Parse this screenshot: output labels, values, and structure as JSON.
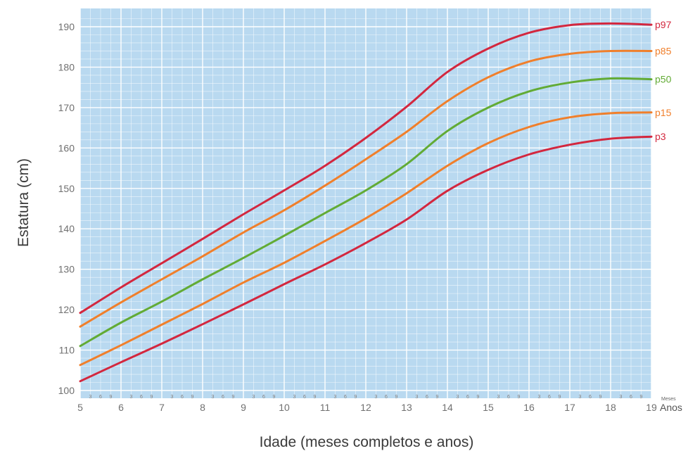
{
  "chart_data": {
    "type": "line",
    "title": "",
    "xlabel": "Idade (meses completos e anos)",
    "ylabel": "Estatura (cm)",
    "x_unit_label": "Anos",
    "month_unit_label": "Meses",
    "xlim": [
      5,
      19
    ],
    "ylim": [
      100,
      193
    ],
    "x_ticks": [
      5,
      6,
      7,
      8,
      9,
      10,
      11,
      12,
      13,
      14,
      15,
      16,
      17,
      18,
      19
    ],
    "y_ticks": [
      100,
      110,
      120,
      130,
      140,
      150,
      160,
      170,
      180,
      190
    ],
    "month_ticks": [
      "3",
      "6",
      "9"
    ],
    "grid": true,
    "background_color": "#b9d9f0",
    "grid_color": "#ffffff",
    "legend": "inline-right",
    "x": [
      5,
      6,
      7,
      8,
      9,
      10,
      11,
      12,
      13,
      14,
      15,
      16,
      17,
      18,
      19
    ],
    "series": [
      {
        "name": "p97",
        "color": "#d3273e",
        "values": [
          119.2,
          125.5,
          131.5,
          137.5,
          143.6,
          149.5,
          155.6,
          162.5,
          170.2,
          178.8,
          184.6,
          188.5,
          190.4,
          190.8,
          190.5
        ]
      },
      {
        "name": "p85",
        "color": "#f07f2b",
        "values": [
          115.8,
          121.8,
          127.5,
          133.2,
          139.1,
          144.6,
          150.7,
          157.2,
          164.0,
          171.6,
          177.5,
          181.4,
          183.3,
          184.0,
          184.0
        ]
      },
      {
        "name": "p50",
        "color": "#62ab35",
        "values": [
          111.0,
          116.8,
          122.0,
          127.5,
          132.8,
          138.3,
          143.9,
          149.5,
          156.0,
          164.2,
          170.0,
          174.0,
          176.2,
          177.2,
          177.0
        ]
      },
      {
        "name": "p15",
        "color": "#f07f2b",
        "values": [
          106.3,
          111.2,
          116.3,
          121.4,
          126.7,
          131.6,
          137.0,
          142.6,
          148.8,
          155.6,
          161.2,
          165.2,
          167.6,
          168.6,
          168.8
        ]
      },
      {
        "name": "p3",
        "color": "#d3273e",
        "values": [
          102.3,
          107.0,
          111.6,
          116.4,
          121.3,
          126.3,
          131.2,
          136.5,
          142.3,
          149.4,
          154.6,
          158.4,
          160.8,
          162.3,
          162.8
        ]
      }
    ]
  }
}
